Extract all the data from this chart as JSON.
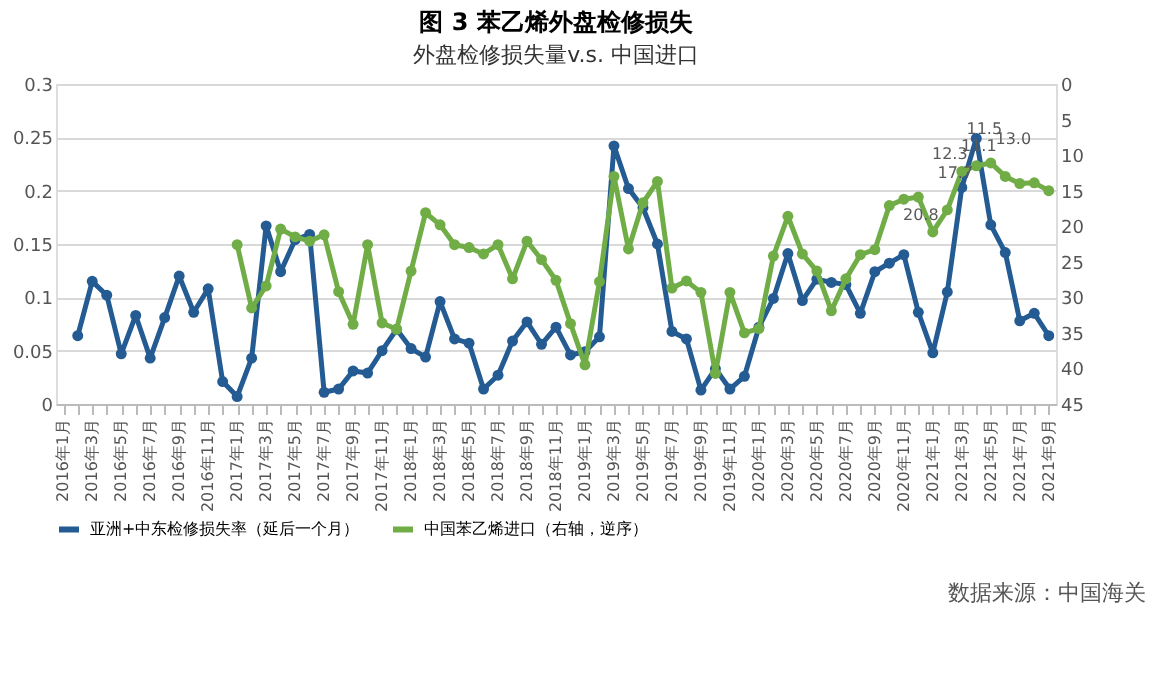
{
  "chart_data": {
    "type": "line",
    "title": "图 3 苯乙烯外盘检修损失",
    "subtitle": "外盘检修损失量v.s. 中国进口",
    "categories": [
      "2016年1月",
      null,
      "2016年3月",
      null,
      "2016年5月",
      null,
      "2016年7月",
      null,
      "2016年9月",
      null,
      "2016年11月",
      null,
      "2017年1月",
      null,
      "2017年3月",
      null,
      "2017年5月",
      null,
      "2017年7月",
      null,
      "2017年9月",
      null,
      "2017年11月",
      null,
      "2018年1月",
      null,
      "2018年3月",
      null,
      "2018年5月",
      null,
      "2018年7月",
      null,
      "2018年9月",
      null,
      "2018年11月",
      null,
      "2019年1月",
      null,
      "2019年3月",
      null,
      "2019年5月",
      null,
      "2019年7月",
      null,
      "2019年9月",
      null,
      "2019年11月",
      null,
      "2020年1月",
      null,
      "2020年3月",
      null,
      "2020年5月",
      null,
      "2020年7月",
      null,
      "2020年9月",
      null,
      "2020年11月",
      null,
      "2021年1月",
      null,
      "2021年3月",
      null,
      "2021年5月",
      null,
      "2021年7月",
      null,
      "2021年9月"
    ],
    "series": [
      {
        "name": "亚洲+中东检修损失率（延后一个月）",
        "color": "#235b92",
        "values": [
          null,
          0.064,
          0.115,
          0.102,
          0.047,
          0.083,
          0.043,
          0.081,
          0.12,
          0.086,
          0.108,
          0.021,
          0.007,
          0.043,
          0.167,
          0.124,
          0.154,
          0.159,
          0.011,
          0.014,
          0.031,
          0.029,
          0.05,
          0.07,
          0.052,
          0.044,
          0.096,
          0.061,
          0.057,
          0.014,
          0.027,
          0.059,
          0.077,
          0.056,
          0.072,
          0.046,
          0.049,
          0.063,
          0.242,
          0.202,
          0.184,
          0.15,
          0.068,
          0.061,
          0.013,
          0.033,
          0.014,
          0.026,
          0.072,
          0.099,
          0.141,
          0.097,
          0.117,
          0.114,
          0.112,
          0.085,
          0.124,
          0.132,
          0.14,
          0.086,
          0.048,
          0.105,
          0.203,
          0.249,
          0.168,
          0.142,
          0.078,
          0.085,
          0.064
        ]
      },
      {
        "name": "中国苯乙烯进口（右轴，逆序）",
        "color": "#70ad47",
        "axis": "y2",
        "values": [
          null,
          null,
          null,
          null,
          null,
          null,
          null,
          null,
          null,
          null,
          null,
          null,
          22.6,
          31.5,
          28.4,
          20.4,
          21.5,
          22.1,
          21.2,
          29.2,
          33.8,
          22.6,
          33.6,
          34.5,
          26.3,
          18.1,
          19.8,
          22.6,
          23.0,
          23.9,
          22.6,
          27.4,
          22.1,
          24.7,
          27.6,
          33.7,
          39.5,
          27.8,
          13.0,
          23.2,
          16.7,
          13.7,
          28.7,
          27.7,
          29.3,
          40.7,
          29.3,
          35.0,
          34.4,
          24.2,
          18.6,
          23.9,
          26.3,
          31.9,
          27.4,
          24.0,
          23.3,
          17.1,
          16.2,
          15.9,
          20.8,
          17.7,
          12.3,
          11.5,
          11.1,
          13.0,
          14.0,
          13.9,
          15.0
        ],
        "value_labels": [
          null,
          null,
          null,
          null,
          null,
          null,
          null,
          null,
          null,
          null,
          null,
          null,
          null,
          null,
          null,
          null,
          null,
          null,
          null,
          null,
          null,
          null,
          null,
          null,
          null,
          null,
          null,
          null,
          null,
          null,
          null,
          null,
          null,
          null,
          null,
          null,
          null,
          null,
          null,
          null,
          null,
          null,
          null,
          null,
          null,
          null,
          null,
          null,
          null,
          null,
          null,
          null,
          null,
          null,
          null,
          null,
          null,
          null,
          null,
          null,
          "20.8",
          "17.7",
          "12.3",
          "11.5",
          "11.1",
          "13.0",
          null,
          null,
          null
        ]
      }
    ],
    "ylim": [
      0,
      0.3
    ],
    "yticks": [
      0,
      0.05,
      0.1,
      0.15,
      0.2,
      0.25,
      0.3
    ],
    "y2lim": [
      45,
      0
    ],
    "y2ticks": [
      0,
      5,
      10,
      15,
      20,
      25,
      30,
      35,
      40,
      45
    ],
    "grid": "y",
    "legend": "bottom",
    "marker": "circle",
    "annotations": [
      "数据来源：中国海关"
    ]
  }
}
